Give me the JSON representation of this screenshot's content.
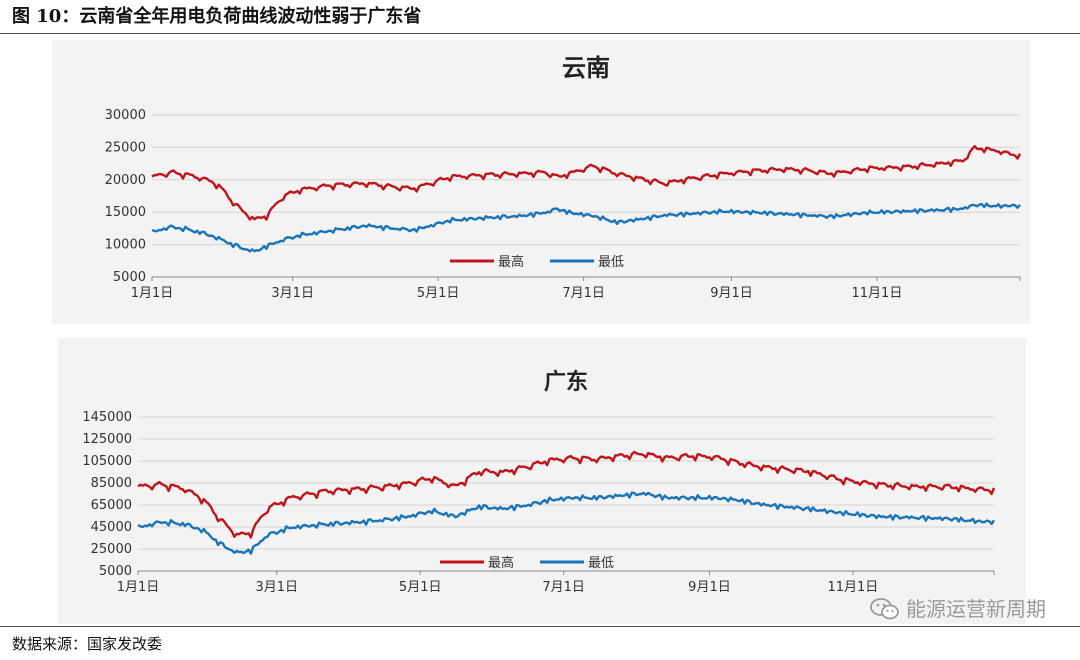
{
  "figure": {
    "title": "图 10：云南省全年用电负荷曲线波动性弱于广东省",
    "source": "数据来源：国家发改委",
    "watermark": "能源运营新周期",
    "watermark_icon": "wechat-icon"
  },
  "chart_data": [
    {
      "type": "line",
      "title": "云南",
      "xlabel": "",
      "ylabel": "",
      "ylim": [
        5000,
        30000
      ],
      "yticks": [
        5000,
        10000,
        15000,
        20000,
        25000,
        30000
      ],
      "x_ticks": [
        "1月1日",
        "3月1日",
        "5月1日",
        "7月1日",
        "9月1日",
        "11月1日"
      ],
      "x_tick_days": [
        0,
        59,
        120,
        181,
        243,
        304
      ],
      "x_range_days": [
        0,
        364
      ],
      "grid": "horizontal",
      "legend_position": "bottom-center",
      "series": [
        {
          "name": "最高",
          "color": "#c0141c",
          "x_days": [
            0,
            8,
            15,
            22,
            28,
            33,
            38,
            43,
            48,
            55,
            62,
            75,
            90,
            100,
            110,
            125,
            140,
            155,
            165,
            170,
            175,
            185,
            195,
            205,
            215,
            225,
            240,
            255,
            265,
            275,
            285,
            300,
            315,
            330,
            340,
            345,
            355,
            360,
            364
          ],
          "values": [
            20500,
            21200,
            20800,
            20200,
            19200,
            17000,
            15200,
            13900,
            14500,
            17500,
            18500,
            19200,
            19500,
            19000,
            18700,
            20500,
            20800,
            21000,
            21200,
            20500,
            21000,
            22200,
            21000,
            20200,
            19500,
            20200,
            21000,
            21500,
            21700,
            21500,
            21000,
            21800,
            22000,
            22500,
            23000,
            25000,
            24500,
            24000,
            23800
          ]
        },
        {
          "name": "最低",
          "color": "#1b74b8",
          "x_days": [
            0,
            8,
            15,
            22,
            28,
            33,
            38,
            43,
            48,
            55,
            62,
            75,
            90,
            100,
            110,
            125,
            140,
            155,
            165,
            170,
            175,
            185,
            195,
            205,
            215,
            225,
            240,
            255,
            265,
            275,
            285,
            300,
            315,
            330,
            340,
            345,
            355,
            360,
            364
          ],
          "values": [
            12000,
            12800,
            12400,
            11800,
            11000,
            10200,
            9500,
            9000,
            9800,
            10800,
            11500,
            12200,
            13000,
            12600,
            12300,
            13800,
            14200,
            14500,
            15000,
            15600,
            15000,
            14500,
            13500,
            14000,
            14600,
            14800,
            15200,
            15000,
            14800,
            14600,
            14400,
            15000,
            15200,
            15400,
            15600,
            16200,
            16000,
            16100,
            16000
          ]
        }
      ]
    },
    {
      "type": "line",
      "title": "广东",
      "xlabel": "",
      "ylabel": "",
      "ylim": [
        5000,
        145000
      ],
      "yticks": [
        5000,
        25000,
        45000,
        65000,
        85000,
        105000,
        125000,
        145000
      ],
      "x_ticks": [
        "1月1日",
        "3月1日",
        "5月1日",
        "7月1日",
        "9月1日",
        "11月1日"
      ],
      "x_tick_days": [
        0,
        59,
        120,
        181,
        243,
        304
      ],
      "x_range_days": [
        0,
        364
      ],
      "grid": "horizontal",
      "legend_position": "bottom-center",
      "series": [
        {
          "name": "最高",
          "color": "#c0141c",
          "x_days": [
            0,
            10,
            20,
            28,
            35,
            42,
            48,
            55,
            65,
            80,
            95,
            105,
            115,
            125,
            135,
            145,
            155,
            165,
            175,
            185,
            195,
            205,
            215,
            225,
            235,
            245,
            255,
            265,
            275,
            285,
            300,
            315,
            330,
            345,
            355,
            364
          ],
          "values": [
            82000,
            84000,
            80000,
            70000,
            52000,
            38000,
            40000,
            62000,
            72000,
            78000,
            80000,
            82000,
            85000,
            90000,
            82000,
            96000,
            95000,
            100000,
            106000,
            108000,
            107000,
            110000,
            112000,
            108000,
            110000,
            109000,
            104000,
            100000,
            98000,
            96000,
            88000,
            84000,
            82000,
            82000,
            80000,
            79000
          ]
        },
        {
          "name": "最低",
          "color": "#1b74b8",
          "x_days": [
            0,
            10,
            20,
            28,
            35,
            42,
            48,
            55,
            65,
            80,
            95,
            105,
            115,
            125,
            135,
            145,
            155,
            165,
            175,
            185,
            195,
            205,
            215,
            225,
            235,
            245,
            255,
            265,
            275,
            285,
            300,
            315,
            330,
            345,
            355,
            364
          ],
          "values": [
            45000,
            50000,
            48000,
            42000,
            30000,
            22000,
            24000,
            38000,
            45000,
            48000,
            50000,
            52000,
            55000,
            60000,
            55000,
            64000,
            62000,
            65000,
            70000,
            72000,
            72000,
            74000,
            76000,
            72000,
            72000,
            72000,
            70000,
            66000,
            64000,
            62000,
            58000,
            55000,
            54000,
            53000,
            51000,
            50000
          ]
        }
      ]
    }
  ]
}
